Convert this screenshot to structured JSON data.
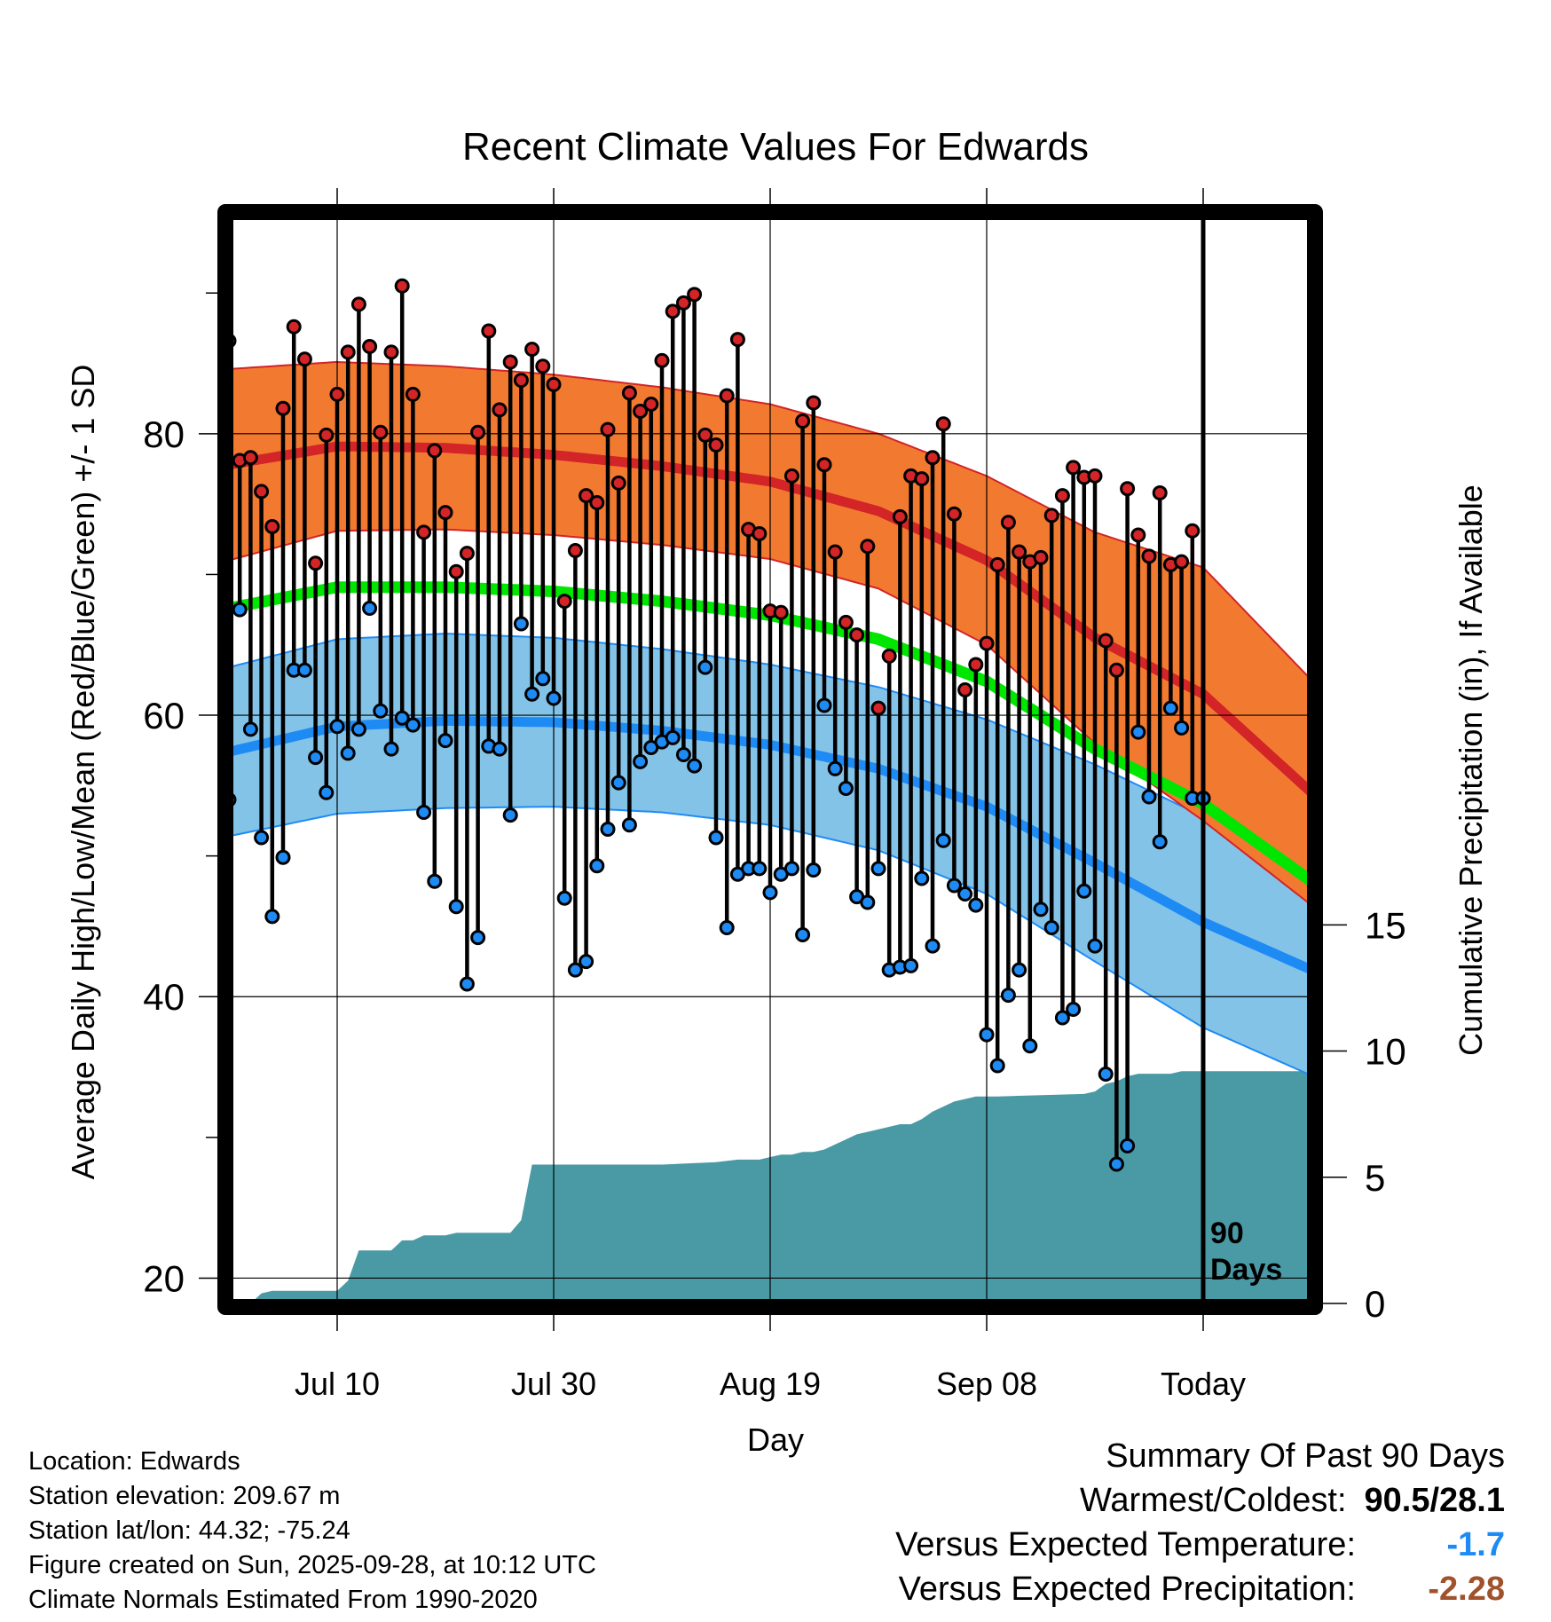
{
  "chart_data": {
    "type": "line",
    "title": "Recent Climate Values For Edwards",
    "xlabel": "Day",
    "ylabel": "Average Daily High/Low/Mean (Red/Blue/Green) +/- 1 SD",
    "y2label": "Cumulative Precipitation (in), If Available",
    "ylim": [
      18.2,
      95.5
    ],
    "y2lim": [
      0,
      43.1
    ],
    "yticks": [
      "20",
      "40",
      "60",
      "80"
    ],
    "y2ticks": [
      "0",
      "5",
      "10",
      "15"
    ],
    "x_tick_labels": [
      "Jul 10",
      "Jul 30",
      "Aug 19",
      "Sep 08",
      "Today"
    ],
    "x_tick_days": [
      11,
      31,
      51,
      71,
      91
    ],
    "days_label": [
      "90",
      "Days"
    ],
    "x_range_days": [
      1,
      101
    ],
    "today_day": 91,
    "colors": {
      "high": "#d32427",
      "high_band": "#f27a30",
      "low": "#1e8bf5",
      "low_band": "#84c3e8",
      "mean": "#00e600",
      "precip": "#4a9aa6"
    },
    "normals_day": [
      1,
      11,
      21,
      31,
      41,
      51,
      61,
      71,
      81,
      91,
      101
    ],
    "normal_high": [
      77.8,
      79.1,
      79.0,
      78.5,
      77.7,
      76.6,
      74.5,
      71.0,
      65.5,
      61.5,
      54.5
    ],
    "normal_high_sd": [
      6.8,
      6.0,
      5.8,
      5.7,
      5.6,
      5.5,
      5.5,
      6.0,
      7.5,
      9.0,
      8.0
    ],
    "normal_low": [
      57.4,
      59.2,
      59.6,
      59.5,
      58.9,
      57.9,
      56.2,
      53.5,
      49.5,
      45.3,
      41.9
    ],
    "normal_low_sd": [
      6.0,
      6.2,
      6.2,
      6.0,
      5.8,
      5.7,
      5.8,
      6.2,
      7.0,
      7.5,
      7.5
    ],
    "normal_mean": [
      67.6,
      69.1,
      69.1,
      68.8,
      68.1,
      67.1,
      65.4,
      62.4,
      57.6,
      53.7,
      48.2
    ],
    "observed_day": [
      1,
      2,
      3,
      4,
      5,
      6,
      7,
      8,
      9,
      10,
      11,
      12,
      13,
      14,
      15,
      16,
      17,
      18,
      19,
      20,
      21,
      22,
      23,
      24,
      25,
      26,
      27,
      28,
      29,
      30,
      31,
      32,
      33,
      34,
      35,
      36,
      37,
      38,
      39,
      40,
      41,
      42,
      43,
      44,
      45,
      46,
      47,
      48,
      49,
      50,
      51,
      52,
      53,
      54,
      55,
      56,
      57,
      58,
      59,
      60,
      61,
      62,
      63,
      64,
      65,
      66,
      67,
      68,
      69,
      70,
      71,
      72,
      73,
      74,
      75,
      76,
      77,
      78,
      79,
      80,
      81,
      82,
      83,
      84,
      85,
      86,
      87,
      88,
      89,
      90,
      91
    ],
    "observed_high": [
      86.6,
      78.1,
      78.3,
      75.9,
      73.4,
      81.8,
      87.6,
      85.3,
      70.8,
      79.9,
      82.8,
      85.8,
      89.2,
      86.2,
      80.1,
      85.8,
      90.5,
      82.8,
      73.0,
      78.8,
      74.4,
      70.2,
      71.5,
      80.1,
      87.3,
      81.7,
      85.1,
      83.8,
      86.0,
      84.8,
      83.5,
      68.1,
      71.7,
      75.6,
      75.1,
      80.3,
      76.5,
      82.9,
      81.6,
      82.1,
      85.2,
      88.7,
      89.3,
      89.9,
      79.9,
      79.2,
      82.7,
      86.7,
      73.2,
      72.9,
      67.4,
      67.3,
      77.0,
      80.9,
      82.2,
      77.8,
      71.6,
      66.6,
      65.7,
      72.0,
      60.5,
      64.2,
      74.1,
      77.0,
      76.8,
      78.3,
      80.7,
      74.3,
      61.8,
      63.6,
      65.1,
      70.7,
      73.7,
      71.6,
      70.9,
      71.2,
      74.2,
      75.6,
      77.6,
      76.9,
      77.0,
      65.3,
      63.2,
      76.1,
      72.8,
      71.3,
      75.8,
      70.7,
      70.9,
      73.1,
      54.1
    ],
    "observed_low": [
      54.0,
      67.5,
      59.0,
      51.3,
      45.7,
      49.9,
      63.2,
      63.2,
      57.0,
      54.5,
      59.2,
      57.3,
      59.0,
      67.6,
      60.3,
      57.6,
      59.8,
      59.3,
      53.1,
      48.2,
      58.2,
      46.4,
      40.9,
      44.2,
      57.8,
      57.6,
      52.9,
      66.5,
      61.5,
      62.6,
      61.2,
      47.0,
      41.9,
      42.5,
      49.3,
      51.9,
      55.2,
      52.2,
      56.7,
      57.7,
      58.1,
      58.4,
      57.2,
      56.4,
      63.4,
      51.3,
      44.9,
      48.7,
      49.1,
      49.1,
      47.4,
      48.7,
      49.1,
      44.4,
      49.0,
      60.7,
      56.2,
      54.8,
      47.1,
      46.7,
      49.1,
      41.9,
      42.1,
      42.2,
      48.4,
      43.6,
      51.1,
      47.9,
      47.3,
      46.5,
      37.3,
      35.1,
      40.1,
      41.9,
      36.5,
      46.2,
      44.9,
      38.5,
      39.1,
      47.5,
      43.6,
      34.5,
      28.1,
      29.4,
      58.8,
      54.2,
      51.0,
      60.5,
      59.1,
      54.1,
      54.1
    ],
    "precip_day": [
      1,
      3,
      4,
      5,
      11,
      12,
      13,
      14,
      16,
      17,
      18,
      19,
      20,
      21,
      22,
      23,
      24,
      25,
      26,
      27,
      28,
      29,
      30,
      31,
      41,
      46,
      48,
      49,
      50,
      51,
      52,
      53,
      54,
      55,
      56,
      57,
      58,
      59,
      60,
      61,
      62,
      63,
      64,
      65,
      66,
      67,
      68,
      69,
      70,
      71,
      72,
      80,
      81,
      82,
      83,
      84,
      85,
      86,
      87,
      88,
      89,
      90,
      91,
      101
    ],
    "precip_cum": [
      0,
      0,
      0.4,
      0.5,
      0.5,
      0.9,
      2.1,
      2.1,
      2.1,
      2.5,
      2.5,
      2.7,
      2.7,
      2.7,
      2.8,
      2.8,
      2.8,
      2.8,
      2.8,
      2.8,
      3.3,
      5.5,
      5.5,
      5.5,
      5.5,
      5.6,
      5.7,
      5.7,
      5.7,
      5.8,
      5.9,
      5.9,
      6.0,
      6.0,
      6.1,
      6.3,
      6.5,
      6.7,
      6.8,
      6.9,
      7.0,
      7.1,
      7.1,
      7.3,
      7.6,
      7.8,
      8.0,
      8.1,
      8.2,
      8.2,
      8.2,
      8.3,
      8.4,
      8.7,
      8.8,
      9.0,
      9.1,
      9.1,
      9.1,
      9.1,
      9.2,
      9.2,
      9.2,
      9.2
    ]
  },
  "info": {
    "location": "Location: Edwards",
    "elevation": "Station elevation: 209.67 m",
    "latlon": "Station lat/lon: 44.32; -75.24",
    "created": "Figure created on Sun, 2025-09-28, at 10:12 UTC",
    "normals": "Climate Normals Estimated From 1990-2020"
  },
  "summary": {
    "title": "Summary Of Past 90 Days",
    "warm_cold_label": "Warmest/Coldest:",
    "warm_cold_value": "90.5/28.1",
    "temp_label": "Versus Expected Temperature:",
    "temp_value": "-1.7",
    "temp_color": "#1e8bf5",
    "precip_label": "Versus Expected Precipitation:",
    "precip_value": "-2.28",
    "precip_color": "#a0522d"
  }
}
